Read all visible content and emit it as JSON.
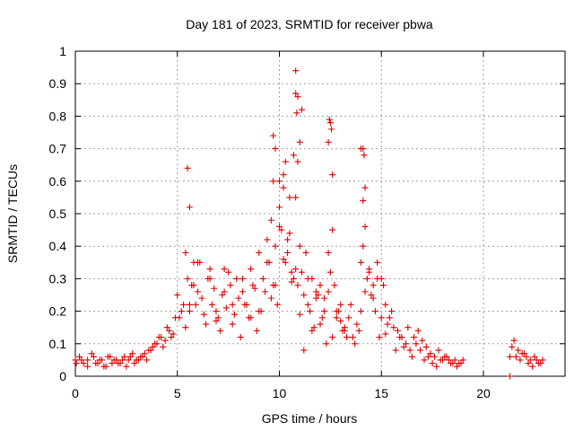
{
  "chart_data": {
    "type": "scatter",
    "title": "Day 181 of 2023, SRMTID for receiver pbwa",
    "xlabel": "GPS time / hours",
    "ylabel": "SRMTID / TECUs",
    "xlim": [
      0,
      24
    ],
    "ylim": [
      0,
      1
    ],
    "xticks": [
      "0",
      "5",
      "10",
      "15",
      "20"
    ],
    "yticks": [
      "0",
      "0.1",
      "0.2",
      "0.3",
      "0.4",
      "0.5",
      "0.6",
      "0.7",
      "0.8",
      "0.9",
      "1"
    ],
    "grid": true,
    "marker": "plus",
    "color": "#e00000",
    "series": [
      {
        "name": "pbwa",
        "x": [
          0.0,
          0.2,
          0.4,
          0.6,
          0.8,
          1.0,
          1.2,
          1.4,
          1.6,
          1.8,
          2.0,
          2.2,
          2.4,
          2.6,
          2.8,
          3.0,
          3.2,
          3.4,
          3.6,
          3.8,
          4.0,
          4.2,
          4.4,
          4.6,
          4.8,
          5.0,
          5.1,
          5.3,
          5.5,
          5.6,
          5.8,
          6.0,
          6.2,
          6.3,
          6.5,
          6.7,
          6.8,
          7.0,
          7.2,
          7.4,
          7.6,
          7.8,
          8.0,
          8.2,
          8.4,
          8.6,
          8.8,
          9.0,
          9.2,
          9.4,
          9.5,
          9.6,
          9.8,
          10.0,
          10.1,
          10.2,
          10.4,
          10.5,
          10.7,
          10.8,
          10.9,
          11.0,
          11.1,
          11.2,
          11.4,
          11.6,
          11.8,
          12.0,
          12.2,
          12.4,
          12.5,
          12.6,
          12.8,
          13.0,
          13.2,
          13.4,
          13.6,
          13.8,
          14.0,
          14.1,
          14.2,
          14.4,
          14.6,
          14.8,
          15.0,
          15.2,
          15.4,
          15.6,
          15.8,
          16.0,
          16.2,
          16.4,
          16.6,
          16.8,
          17.0,
          17.2,
          17.4,
          17.6,
          17.8,
          18.0,
          18.2,
          18.4,
          18.6,
          18.8,
          19.0,
          21.3,
          21.5,
          21.7,
          21.9,
          22.1,
          22.3,
          22.5,
          22.7,
          22.9,
          0.05,
          0.3,
          0.6,
          0.9,
          1.1,
          1.3,
          1.5,
          1.7,
          1.9,
          2.1,
          2.3,
          2.5,
          2.7,
          2.9,
          3.1,
          3.3,
          3.5,
          3.7,
          3.9,
          4.1,
          4.3,
          4.5,
          4.7,
          4.9,
          5.2,
          5.4,
          5.7,
          5.9,
          6.1,
          6.4,
          6.6,
          6.9,
          7.1,
          7.3,
          7.5,
          7.7,
          7.9,
          8.1,
          8.3,
          8.5,
          8.7,
          8.9,
          9.1,
          9.3,
          9.7,
          9.9,
          10.3,
          10.6,
          11.3,
          11.5,
          11.7,
          11.9,
          12.1,
          12.3,
          12.7,
          12.9,
          13.1,
          13.3,
          13.5,
          13.7,
          13.9,
          14.3,
          14.5,
          14.7,
          14.9,
          15.1,
          15.3,
          15.5,
          15.7,
          15.9,
          16.1,
          16.3,
          16.5,
          16.7,
          16.9,
          17.1,
          17.3,
          17.5,
          17.7,
          17.9,
          18.1,
          18.3,
          18.5,
          18.7,
          18.9,
          21.4,
          21.6,
          21.8,
          22.0,
          22.2,
          22.4,
          22.6,
          22.8,
          5.4,
          5.6,
          5.8,
          6.0,
          6.6,
          6.9,
          7.3,
          7.7,
          8.2,
          8.6,
          9.0,
          9.4,
          9.6,
          9.8,
          10.0,
          10.2,
          10.4,
          10.6,
          10.8,
          11.0,
          11.2,
          11.4,
          11.6,
          11.8,
          12.0,
          12.2,
          12.4,
          12.6,
          12.8,
          13.0,
          13.2,
          14.0,
          14.2,
          14.4,
          14.6,
          14.8,
          15.0,
          15.2,
          9.7,
          9.8,
          10.0,
          10.3,
          10.5,
          10.7,
          10.8,
          10.9,
          11.0,
          11.1,
          12.4,
          12.5,
          12.6,
          14.0,
          14.1,
          14.2,
          5.5,
          5.6,
          9.7,
          10.2,
          10.8,
          10.9,
          10.85,
          12.45,
          12.55,
          14.1,
          14.15,
          21.3
        ],
        "y": [
          0.05,
          0.06,
          0.04,
          0.05,
          0.07,
          0.04,
          0.05,
          0.03,
          0.06,
          0.04,
          0.05,
          0.04,
          0.06,
          0.05,
          0.07,
          0.05,
          0.06,
          0.07,
          0.08,
          0.09,
          0.1,
          0.12,
          0.11,
          0.14,
          0.13,
          0.25,
          0.18,
          0.22,
          0.3,
          0.2,
          0.28,
          0.35,
          0.24,
          0.19,
          0.3,
          0.22,
          0.27,
          0.18,
          0.25,
          0.21,
          0.28,
          0.19,
          0.24,
          0.3,
          0.22,
          0.33,
          0.27,
          0.38,
          0.3,
          0.42,
          0.35,
          0.48,
          0.4,
          0.52,
          0.45,
          0.58,
          0.38,
          0.44,
          0.3,
          0.55,
          0.28,
          0.4,
          0.32,
          0.25,
          0.22,
          0.3,
          0.26,
          0.28,
          0.24,
          0.38,
          0.32,
          0.45,
          0.2,
          0.17,
          0.15,
          0.18,
          0.12,
          0.16,
          0.35,
          0.4,
          0.46,
          0.32,
          0.28,
          0.35,
          0.3,
          0.22,
          0.18,
          0.15,
          0.14,
          0.12,
          0.1,
          0.08,
          0.12,
          0.14,
          0.11,
          0.09,
          0.07,
          0.06,
          0.08,
          0.05,
          0.06,
          0.04,
          0.05,
          0.04,
          0.05,
          0.06,
          0.11,
          0.08,
          0.07,
          0.06,
          0.05,
          0.06,
          0.04,
          0.05,
          0.04,
          0.05,
          0.03,
          0.06,
          0.04,
          0.05,
          0.03,
          0.06,
          0.05,
          0.04,
          0.05,
          0.03,
          0.06,
          0.04,
          0.05,
          0.06,
          0.05,
          0.08,
          0.1,
          0.12,
          0.09,
          0.15,
          0.12,
          0.18,
          0.2,
          0.15,
          0.28,
          0.22,
          0.35,
          0.16,
          0.33,
          0.2,
          0.14,
          0.26,
          0.32,
          0.16,
          0.3,
          0.12,
          0.22,
          0.18,
          0.28,
          0.14,
          0.2,
          0.26,
          0.28,
          0.22,
          0.35,
          0.32,
          0.38,
          0.2,
          0.15,
          0.25,
          0.18,
          0.1,
          0.28,
          0.2,
          0.14,
          0.12,
          0.22,
          0.1,
          0.14,
          0.3,
          0.25,
          0.2,
          0.12,
          0.28,
          0.16,
          0.2,
          0.08,
          0.12,
          0.09,
          0.15,
          0.06,
          0.1,
          0.08,
          0.05,
          0.06,
          0.04,
          0.03,
          0.05,
          0.06,
          0.05,
          0.04,
          0.03,
          0.04,
          0.09,
          0.06,
          0.05,
          0.07,
          0.04,
          0.03,
          0.05,
          0.04,
          0.38,
          0.22,
          0.35,
          0.26,
          0.3,
          0.17,
          0.33,
          0.22,
          0.26,
          0.18,
          0.2,
          0.35,
          0.24,
          0.28,
          0.46,
          0.36,
          0.42,
          0.29,
          0.33,
          0.19,
          0.08,
          0.3,
          0.14,
          0.24,
          0.16,
          0.2,
          0.26,
          0.12,
          0.18,
          0.22,
          0.14,
          0.2,
          0.26,
          0.33,
          0.24,
          0.3,
          0.18,
          0.13,
          0.74,
          0.7,
          0.6,
          0.66,
          0.55,
          0.68,
          0.87,
          0.66,
          0.72,
          0.82,
          0.72,
          0.78,
          0.62,
          0.7,
          0.54,
          0.58,
          0.64,
          0.52,
          0.6,
          0.62,
          0.94,
          0.86,
          0.81,
          0.79,
          0.76,
          0.7,
          0.68,
          0.0
        ]
      }
    ]
  }
}
